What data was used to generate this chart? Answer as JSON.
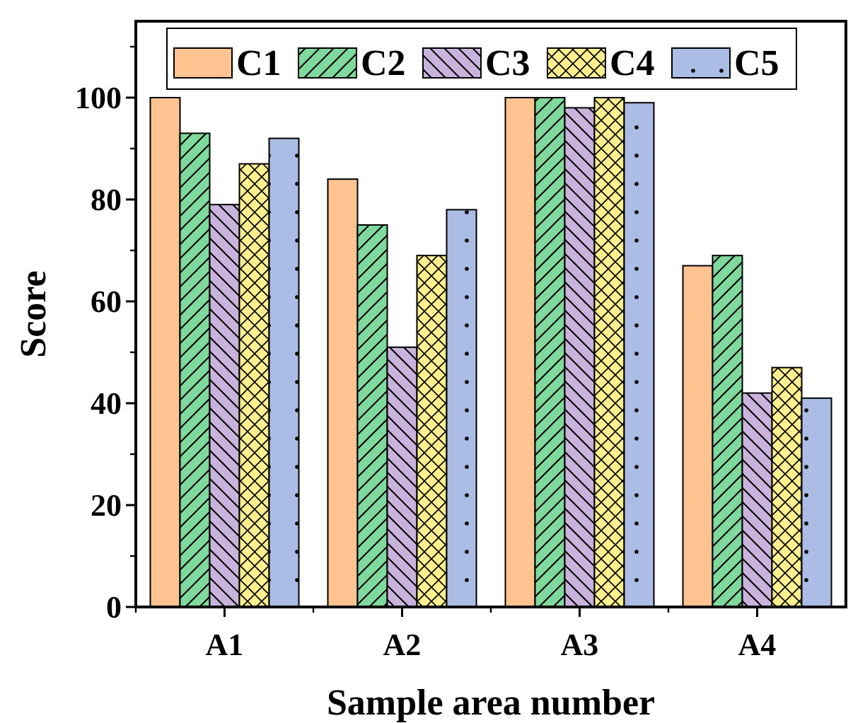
{
  "chart_data": {
    "type": "bar",
    "xlabel": "Sample area number",
    "ylabel": "Score",
    "categories": [
      "A1",
      "A2",
      "A3",
      "A4"
    ],
    "series": [
      {
        "name": "C1",
        "color": "#fec391",
        "values": [
          100,
          84,
          100,
          67
        ]
      },
      {
        "name": "C2",
        "color": "#7fd89c",
        "values": [
          93,
          75,
          100,
          69
        ]
      },
      {
        "name": "C3",
        "color": "#c9b3dc",
        "values": [
          79,
          51,
          98,
          42
        ]
      },
      {
        "name": "C4",
        "color": "#fff08f",
        "values": [
          87,
          69,
          100,
          47
        ]
      },
      {
        "name": "C5",
        "color": "#abbde5",
        "values": [
          92,
          78,
          99,
          41
        ]
      }
    ],
    "ylim": [
      0,
      115
    ],
    "yticks": [
      0,
      20,
      40,
      60,
      80,
      100
    ],
    "grid": false,
    "legend": "top"
  }
}
